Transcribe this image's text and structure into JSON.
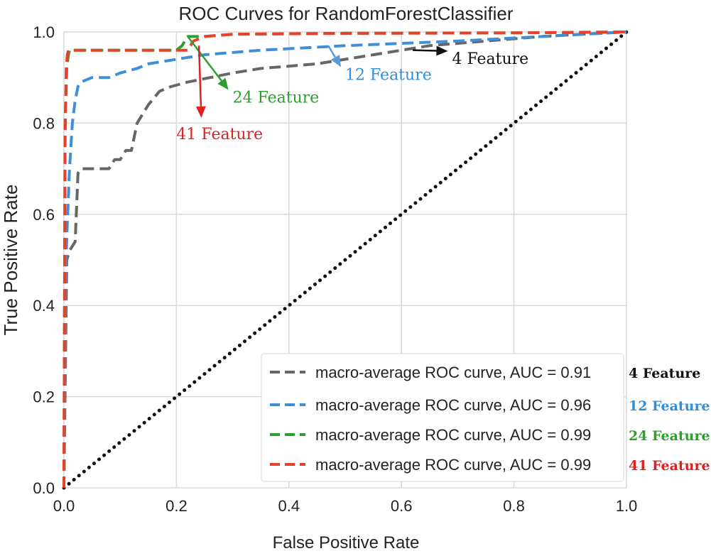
{
  "chart_data": {
    "type": "line",
    "title": "ROC Curves for RandomForestClassifier",
    "xlabel": "False Positive Rate",
    "ylabel": "True Positive Rate",
    "xlim": [
      0.0,
      1.0
    ],
    "ylim": [
      0.0,
      1.0
    ],
    "x_ticks": [
      "0.0",
      "0.2",
      "0.4",
      "0.6",
      "0.8",
      "1.0"
    ],
    "y_ticks": [
      "0.0",
      "0.2",
      "0.4",
      "0.6",
      "0.8",
      "1.0"
    ],
    "grid": true,
    "legend_position": "lower-right",
    "series": [
      {
        "name": "macro-average ROC curve, AUC = 0.91",
        "tag": "4 Feature",
        "color": "#666666",
        "tag_color": "#111111",
        "x": [
          0.0,
          0.005,
          0.01,
          0.015,
          0.02,
          0.022,
          0.025,
          0.03,
          0.05,
          0.08,
          0.09,
          0.1,
          0.11,
          0.12,
          0.13,
          0.15,
          0.17,
          0.19,
          0.22,
          0.3,
          0.35,
          0.45,
          0.55,
          0.65,
          0.75,
          0.85,
          0.92,
          1.0
        ],
        "y": [
          0.0,
          0.5,
          0.52,
          0.53,
          0.54,
          0.6,
          0.69,
          0.7,
          0.7,
          0.7,
          0.72,
          0.72,
          0.74,
          0.74,
          0.8,
          0.84,
          0.87,
          0.88,
          0.89,
          0.91,
          0.92,
          0.93,
          0.95,
          0.97,
          0.98,
          0.99,
          0.995,
          1.0
        ]
      },
      {
        "name": "macro-average ROC curve, AUC = 0.96",
        "tag": "12 Feature",
        "color": "#3f8fd6",
        "tag_color": "#2f8fd8",
        "x": [
          0.0,
          0.003,
          0.005,
          0.01,
          0.015,
          0.02,
          0.025,
          0.03,
          0.05,
          0.08,
          0.1,
          0.13,
          0.15,
          0.2,
          0.25,
          0.35,
          0.5,
          0.7,
          0.85,
          1.0
        ],
        "y": [
          0.0,
          0.45,
          0.55,
          0.7,
          0.8,
          0.85,
          0.88,
          0.89,
          0.9,
          0.9,
          0.91,
          0.92,
          0.93,
          0.94,
          0.95,
          0.96,
          0.97,
          0.98,
          0.99,
          1.0
        ]
      },
      {
        "name": "macro-average ROC curve, AUC = 0.99",
        "tag": "24 Feature",
        "color": "#2ca02c",
        "tag_color": "#2ca02c",
        "x": [
          0.0,
          0.002,
          0.005,
          0.008,
          0.01,
          0.2,
          0.21,
          0.22,
          0.23,
          0.25,
          0.3,
          0.5,
          0.8,
          1.0
        ],
        "y": [
          0.0,
          0.8,
          0.92,
          0.95,
          0.96,
          0.96,
          0.97,
          0.99,
          0.99,
          0.99,
          0.995,
          0.997,
          0.998,
          1.0
        ]
      },
      {
        "name": "macro-average ROC curve, AUC = 0.99",
        "tag": "41 Feature",
        "color": "#e8402a",
        "tag_color": "#e02020",
        "x": [
          0.0,
          0.002,
          0.004,
          0.006,
          0.008,
          0.01,
          0.22,
          0.225,
          0.23,
          0.25,
          0.3,
          0.5,
          0.8,
          1.0
        ],
        "y": [
          0.0,
          0.75,
          0.92,
          0.95,
          0.96,
          0.96,
          0.96,
          0.97,
          0.98,
          0.99,
          0.995,
          0.997,
          0.998,
          1.0
        ]
      }
    ],
    "diagonal": {
      "x": [
        0.0,
        1.0
      ],
      "y": [
        0.0,
        1.0
      ],
      "color": "#111111"
    },
    "annotations": [
      {
        "text": "4 Feature",
        "color": "#111111",
        "arrow_color": "#111111",
        "point": [
          0.62,
          0.96
        ],
        "text_at": [
          0.69,
          0.93
        ]
      },
      {
        "text": "12 Feature",
        "color": "#2f8fd8",
        "arrow_color": "#5b9bd5",
        "point": [
          0.47,
          0.97
        ],
        "text_at": [
          0.5,
          0.895
        ]
      },
      {
        "text": "24 Feature",
        "color": "#2ca02c",
        "arrow_color": "#2ca02c",
        "point": [
          0.22,
          0.99
        ],
        "text_at": [
          0.3,
          0.845
        ]
      },
      {
        "text": "41 Feature",
        "color": "#e02020",
        "arrow_color": "#e02020",
        "point": [
          0.24,
          0.97
        ],
        "text_at": [
          0.2,
          0.765
        ]
      }
    ]
  }
}
